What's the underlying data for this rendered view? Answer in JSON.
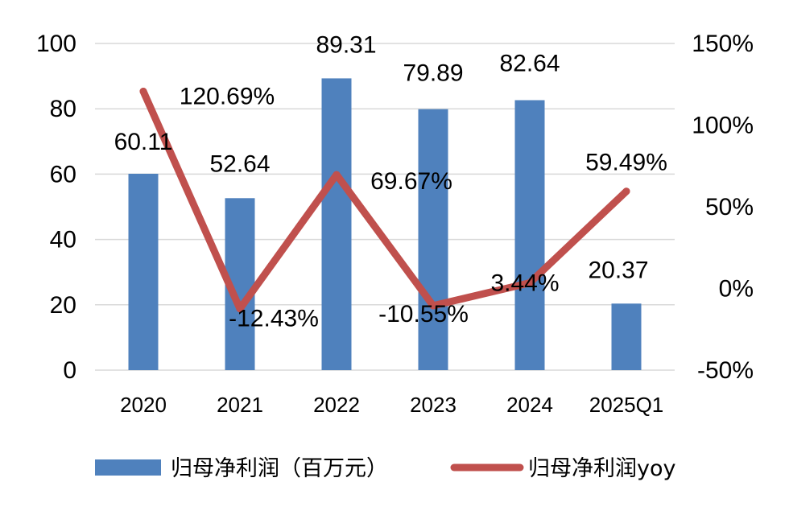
{
  "chart_data": {
    "type": "bar",
    "categories": [
      "2020",
      "2021",
      "2022",
      "2023",
      "2024",
      "2025Q1"
    ],
    "series": [
      {
        "name": "归母净利润（百万元）",
        "type": "bar",
        "axis": "left",
        "color": "#4F81BD",
        "values": [
          60.11,
          52.64,
          89.31,
          79.89,
          82.64,
          20.37
        ],
        "labels": [
          "60.11",
          "52.64",
          "89.31",
          "79.89",
          "82.64",
          "20.37"
        ]
      },
      {
        "name": "归母净利润yoy",
        "type": "line",
        "axis": "right",
        "color": "#C0504D",
        "values": [
          120.69,
          -12.43,
          69.67,
          -10.55,
          3.44,
          59.49
        ],
        "labels": [
          "120.69%",
          "-12.43%",
          "69.67%",
          "-10.55%",
          "3.44%",
          "59.49%"
        ]
      }
    ],
    "y_left": {
      "min": 0,
      "max": 100,
      "ticks": [
        "0",
        "20",
        "40",
        "60",
        "80",
        "100"
      ]
    },
    "y_right": {
      "min": -50,
      "max": 150,
      "ticks": [
        "-50%",
        "0%",
        "50%",
        "100%",
        "150%"
      ]
    },
    "grid": true,
    "legend": "bottom",
    "title": "",
    "xlabel": "",
    "ylabel": ""
  }
}
